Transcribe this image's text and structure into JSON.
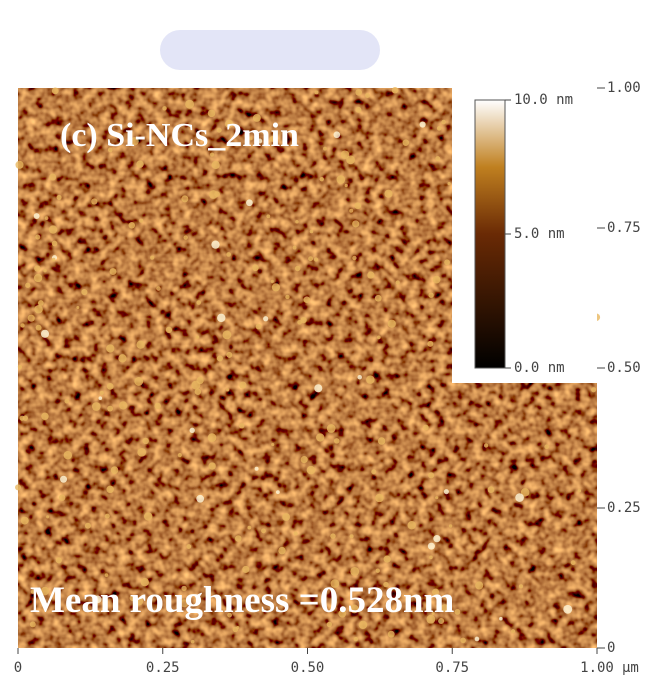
{
  "chart_data": {
    "type": "image",
    "title": "(c) Si-NCs_2min",
    "annotation": "Mean roughness =0.528nm",
    "x_unit": "μm",
    "xlim": [
      0,
      1
    ],
    "ylim": [
      0,
      1
    ],
    "xticks": [
      0,
      0.25,
      {
        "value": 0.5,
        "label": "0.50"
      },
      0.75,
      {
        "value": 1,
        "label": "1.00"
      }
    ],
    "yticks": [
      0,
      0.25,
      {
        "value": 0.5,
        "label": "0.50"
      },
      0.75,
      {
        "value": 1,
        "label": "1.00"
      }
    ],
    "colorbar": {
      "lim": [
        0,
        10
      ],
      "ticks": [
        {
          "value": 0,
          "label": "0.0 nm"
        },
        {
          "value": 5,
          "label": "5.0 nm"
        },
        {
          "value": 10,
          "label": "10.0 nm"
        }
      ]
    }
  }
}
